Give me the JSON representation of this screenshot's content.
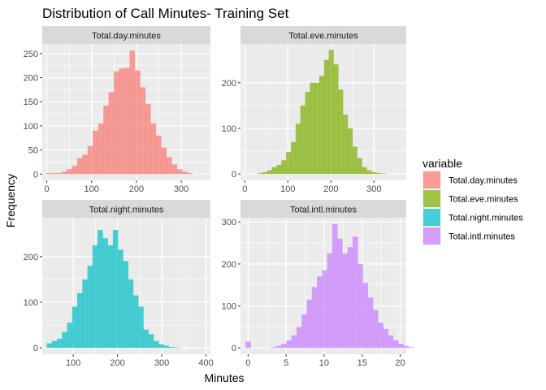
{
  "chart_data": {
    "type": "bar",
    "title": "Distribution of Call Minutes- Training Set",
    "xlabel": "Minutes",
    "ylabel": "Frequency",
    "legend": {
      "title": "variable",
      "placement": "right",
      "entries": [
        "Total.day.minutes",
        "Total.eve.minutes",
        "Total.night.minutes",
        "Total.intl.minutes"
      ]
    },
    "grid": true,
    "facet_scales": "free",
    "panels": [
      {
        "label": "Total.day.minutes",
        "color": "#F8766D",
        "xlim": [
          -10,
          365
        ],
        "xticks": [
          0,
          100,
          200,
          300
        ],
        "ylim": [
          -13,
          270
        ],
        "yticks": [
          0,
          50,
          100,
          150,
          200,
          250
        ],
        "bin_start": -2.5,
        "bin_width": 11.7,
        "values": [
          2,
          2,
          2,
          5,
          10,
          17,
          33,
          40,
          58,
          90,
          105,
          142,
          170,
          213,
          219,
          220,
          256,
          215,
          180,
          145,
          105,
          80,
          55,
          35,
          20,
          10,
          5,
          2
        ]
      },
      {
        "label": "Total.eve.minutes",
        "color": "#7CAE00",
        "xlim": [
          -10,
          375
        ],
        "xticks": [
          0,
          100,
          200,
          300
        ],
        "ylim": [
          -14,
          285
        ],
        "yticks": [
          0,
          100,
          200
        ],
        "bin_start": 30,
        "bin_width": 11,
        "values": [
          2,
          4,
          8,
          15,
          20,
          30,
          48,
          70,
          110,
          150,
          180,
          200,
          200,
          215,
          250,
          272,
          240,
          185,
          130,
          100,
          60,
          35,
          15,
          8,
          4,
          2,
          1
        ]
      },
      {
        "label": "Total.night.minutes",
        "color": "#00BFC4",
        "xlim": [
          30,
          410
        ],
        "xticks": [
          100,
          200,
          300,
          400
        ],
        "ylim": [
          -14,
          285
        ],
        "yticks": [
          0,
          100,
          200
        ],
        "bin_start": 40,
        "bin_width": 11.5,
        "values": [
          10,
          15,
          20,
          35,
          55,
          90,
          120,
          150,
          180,
          225,
          258,
          240,
          225,
          258,
          215,
          190,
          150,
          115,
          90,
          40,
          30,
          15,
          8,
          5,
          2,
          1
        ]
      },
      {
        "label": "Total.intl.minutes",
        "color": "#C77CFF",
        "xlim": [
          -1,
          20.8
        ],
        "xticks": [
          0,
          5,
          10,
          15,
          20
        ],
        "ylim": [
          -15,
          310
        ],
        "yticks": [
          0,
          100,
          200,
          300
        ],
        "bin_start": -0.33,
        "bin_width": 0.67,
        "values": [
          15,
          0,
          0,
          0,
          0,
          2,
          5,
          10,
          18,
          30,
          50,
          80,
          115,
          145,
          170,
          185,
          225,
          295,
          260,
          225,
          240,
          265,
          200,
          155,
          120,
          90,
          60,
          45,
          30,
          18,
          10,
          5,
          2
        ]
      }
    ]
  }
}
